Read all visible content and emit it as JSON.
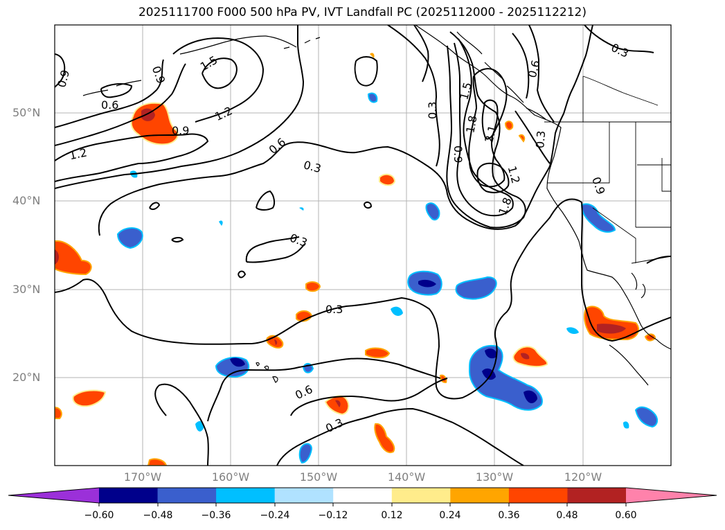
{
  "title": "2025111700 F000 500 hPa PV, IVT Landfall PC (2025112000 - 2025112212)",
  "lat_labels": [
    "50°N",
    "40°N",
    "30°N",
    "20°N"
  ],
  "lon_labels": [
    "170°W",
    "160°W",
    "150°W",
    "140°W",
    "130°W",
    "120°W"
  ],
  "contour_labels": [
    "0.9",
    "0.6",
    "1.5",
    "0.9",
    "1.2",
    "0.9",
    "1.2",
    "0.6",
    "0.3",
    "0.3",
    "0.3",
    "0.6",
    "0.3",
    "1.5",
    "1.8",
    "2.1",
    "0.9",
    "1.8",
    "1.2",
    "0.6",
    "0.3",
    "0.3",
    "0.9",
    "0.3"
  ],
  "colorbar": {
    "colors": [
      "#9b30d9",
      "#00008b",
      "#3a5fcd",
      "#00bfff",
      "#b0e2ff",
      "#ffffff",
      "#ffec8b",
      "#ffa500",
      "#ff4500",
      "#b22222",
      "#ff82ab"
    ],
    "ticks": [
      "−0.60",
      "−0.48",
      "−0.36",
      "−0.24",
      "−0.12",
      "0.12",
      "0.24",
      "0.36",
      "0.48",
      "0.60"
    ]
  }
}
